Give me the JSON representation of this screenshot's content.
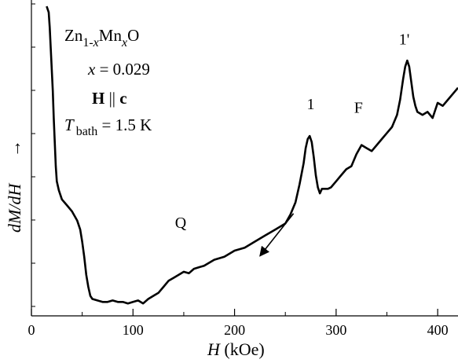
{
  "chart_data": {
    "type": "line",
    "title": "",
    "xlabel": {
      "italic": "H",
      "rest": " (kOe)"
    },
    "ylabel": {
      "italic": "dM/dH",
      "arrow": "→"
    },
    "xlim": [
      0,
      420
    ],
    "ylim": [
      0,
      1
    ],
    "y_tick_labels": "none",
    "grid": false,
    "legend": "none",
    "x_ticks": [
      0,
      100,
      200,
      300,
      400
    ],
    "x_tick_labels": [
      "0",
      "100",
      "200",
      "300",
      "400"
    ],
    "series": [
      {
        "x": [
          15,
          17,
          18,
          19,
          20,
          21,
          22,
          23,
          24,
          25,
          27,
          30,
          35,
          40,
          45,
          48,
          50,
          52,
          54,
          56,
          58,
          60,
          65,
          70,
          75,
          80,
          85,
          90,
          95,
          100,
          105,
          110,
          115,
          120,
          125,
          130,
          135,
          140,
          145,
          150,
          155,
          160,
          170,
          180,
          190,
          200,
          210,
          220,
          230,
          240,
          250,
          255,
          260,
          264,
          268,
          270,
          272,
          274,
          276,
          278,
          280,
          282,
          284,
          286,
          288,
          290,
          292,
          295,
          300,
          305,
          310,
          315,
          320,
          325,
          330,
          335,
          340,
          345,
          350,
          355,
          360,
          363,
          366,
          368,
          370,
          372,
          374,
          376,
          378,
          380,
          385,
          390,
          395,
          400,
          405,
          410,
          415,
          420
        ],
        "y": [
          1.0,
          0.98,
          0.93,
          0.86,
          0.79,
          0.72,
          0.63,
          0.55,
          0.47,
          0.42,
          0.39,
          0.36,
          0.34,
          0.32,
          0.29,
          0.26,
          0.22,
          0.17,
          0.11,
          0.07,
          0.04,
          0.03,
          0.025,
          0.02,
          0.02,
          0.025,
          0.02,
          0.02,
          0.015,
          0.02,
          0.025,
          0.015,
          0.03,
          0.04,
          0.05,
          0.07,
          0.09,
          0.1,
          0.11,
          0.12,
          0.115,
          0.13,
          0.14,
          0.16,
          0.17,
          0.19,
          0.2,
          0.22,
          0.24,
          0.26,
          0.28,
          0.31,
          0.35,
          0.41,
          0.48,
          0.53,
          0.56,
          0.57,
          0.55,
          0.5,
          0.44,
          0.4,
          0.38,
          0.395,
          0.395,
          0.395,
          0.395,
          0.4,
          0.42,
          0.44,
          0.46,
          0.47,
          0.51,
          0.54,
          0.53,
          0.52,
          0.54,
          0.56,
          0.58,
          0.6,
          0.64,
          0.69,
          0.76,
          0.8,
          0.82,
          0.8,
          0.75,
          0.7,
          0.67,
          0.65,
          0.64,
          0.65,
          0.63,
          0.68,
          0.67,
          0.69,
          0.71,
          0.73
        ]
      }
    ],
    "annotations": {
      "formula": {
        "base1": "Zn",
        "sub1": "1-",
        "subvar1": "x",
        "base2": "Mn",
        "sub2": "x",
        "base3": "O"
      },
      "composition": {
        "var": "x",
        "rest": " = 0.029"
      },
      "orientation": {
        "h": "H",
        "sep": " || ",
        "c": "c"
      },
      "temperature": {
        "var": "T",
        "sub": "bath",
        "rest": " = 1.5 K"
      },
      "peaks": [
        {
          "label": "1'",
          "x": 367
        },
        {
          "label": "1",
          "x": 275
        },
        {
          "label": "F",
          "x": 322
        },
        {
          "label": "Q",
          "x": 147
        }
      ],
      "sweep_arrow": {
        "from_x": 258,
        "to_x": 225,
        "meaning": "decreasing field"
      }
    }
  }
}
